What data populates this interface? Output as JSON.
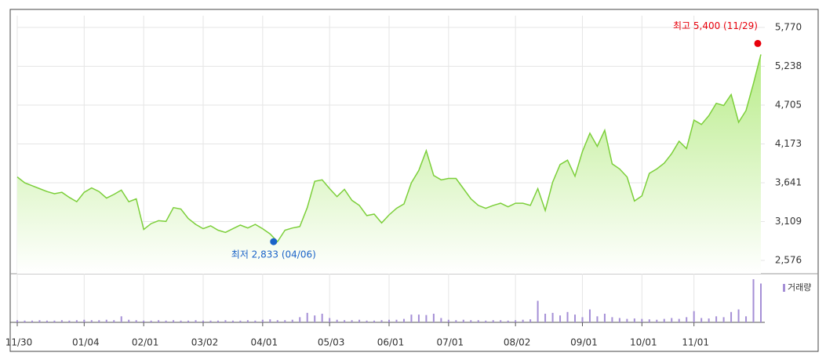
{
  "chart_data": {
    "type": "line",
    "categories": [
      "11/30",
      null,
      null,
      null,
      null,
      null,
      null,
      null,
      null,
      "01/04",
      null,
      null,
      null,
      null,
      null,
      null,
      null,
      "02/01",
      null,
      null,
      null,
      null,
      null,
      null,
      null,
      "03/02",
      null,
      null,
      null,
      null,
      null,
      null,
      null,
      "04/01",
      null,
      null,
      null,
      null,
      null,
      null,
      null,
      null,
      "05/03",
      null,
      null,
      null,
      null,
      null,
      null,
      null,
      "06/01",
      null,
      null,
      null,
      null,
      null,
      null,
      null,
      "07/01",
      null,
      null,
      null,
      null,
      null,
      null,
      null,
      null,
      "08/02",
      null,
      null,
      null,
      null,
      null,
      null,
      null,
      null,
      "09/01",
      null,
      null,
      null,
      null,
      null,
      null,
      null,
      "10/01",
      null,
      null,
      null,
      null,
      null,
      null,
      "11/01",
      null,
      null,
      null,
      null,
      null,
      null,
      null,
      null,
      null
    ],
    "series": [
      {
        "color": "#7ccf3a",
        "values": [
          3720,
          3640,
          3600,
          3560,
          3520,
          3490,
          3510,
          3440,
          3380,
          3510,
          3570,
          3520,
          3430,
          3480,
          3540,
          3380,
          3420,
          3000,
          3080,
          3120,
          3110,
          3300,
          3280,
          3150,
          3070,
          3010,
          3050,
          2990,
          2960,
          3010,
          3060,
          3020,
          3070,
          3010,
          2940,
          2833,
          2990,
          3020,
          3040,
          3300,
          3660,
          3680,
          3560,
          3450,
          3550,
          3400,
          3330,
          3190,
          3210,
          3090,
          3200,
          3290,
          3350,
          3640,
          3810,
          4080,
          3740,
          3680,
          3700,
          3700,
          3560,
          3420,
          3330,
          3290,
          3330,
          3360,
          3310,
          3360,
          3360,
          3330,
          3560,
          3260,
          3650,
          3890,
          3950,
          3730,
          4070,
          4320,
          4140,
          4360,
          3900,
          3830,
          3720,
          3390,
          3460,
          3770,
          3830,
          3910,
          4040,
          4210,
          4110,
          4500,
          4440,
          4560,
          4730,
          4700,
          4850,
          4470,
          4630,
          5000,
          5400
        ]
      },
      {
        "name": "거래량",
        "color": "#a58fd6",
        "axis": "y2",
        "values": [
          5,
          4,
          4,
          5,
          4,
          4,
          5,
          4,
          5,
          6,
          5,
          5,
          6,
          5,
          14,
          6,
          5,
          4,
          4,
          5,
          4,
          5,
          4,
          4,
          5,
          4,
          4,
          4,
          5,
          4,
          4,
          5,
          4,
          6,
          7,
          5,
          5,
          6,
          12,
          22,
          16,
          20,
          10,
          6,
          5,
          5,
          6,
          4,
          4,
          5,
          6,
          6,
          8,
          18,
          18,
          17,
          20,
          10,
          6,
          5,
          6,
          5,
          5,
          4,
          5,
          5,
          4,
          5,
          6,
          7,
          50,
          20,
          22,
          16,
          24,
          18,
          12,
          30,
          14,
          20,
          12,
          10,
          8,
          9,
          8,
          7,
          6,
          8,
          10,
          8,
          12,
          26,
          10,
          9,
          14,
          12,
          24,
          30,
          14,
          100,
          90
        ]
      }
    ],
    "ylim": [
      2576,
      5770
    ],
    "yticks": [
      {
        "value": 2576,
        "label": "2,576"
      },
      {
        "value": 3109,
        "label": "3,109"
      },
      {
        "value": 3641,
        "label": "3,641"
      },
      {
        "value": 4173,
        "label": "4,173"
      },
      {
        "value": 4705,
        "label": "4,705"
      },
      {
        "value": 5238,
        "label": "5,238"
      },
      {
        "value": 5770,
        "label": "5,770"
      }
    ],
    "y2lim": [
      0,
      100
    ],
    "grid": true,
    "annotations": [
      {
        "text": "최고 5,400 (11/29)",
        "color": "#e8000b"
      },
      {
        "text": "최저 2,833 (04/06)",
        "color": "#1a63c8"
      }
    ]
  }
}
